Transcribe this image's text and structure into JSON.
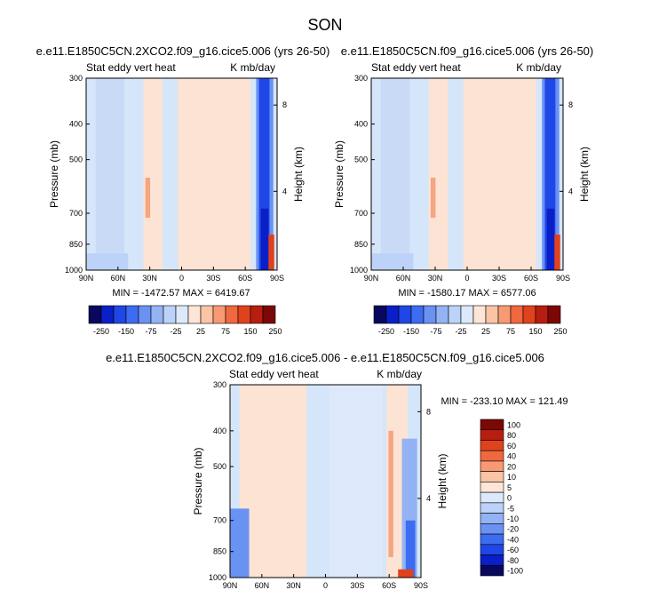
{
  "page": {
    "title": "SON"
  },
  "colors": {
    "scale": [
      "#08085e",
      "#0a1fc8",
      "#1f46e6",
      "#3c6cf0",
      "#6a92f2",
      "#94b3f4",
      "#bcd2f8",
      "#dce9fb",
      "#fde6d8",
      "#fbc4a5",
      "#f79a73",
      "#f0683f",
      "#e0421e",
      "#b81e0f",
      "#7c0707"
    ],
    "neutral_blue": "#d6e6fa",
    "neutral_orange": "#fce3d3"
  },
  "chart_data": [
    {
      "type": "heatmap",
      "title": "e.e11.E1850C5CN.2XCO2.f09_g16.cice5.006 (yrs 26-50)",
      "left_label": "Stat eddy vert heat",
      "right_label": "K mb/day",
      "ylabel": "Pressure (mb)",
      "ylabel_right": "Height (km)",
      "xticks": [
        "90N",
        "60N",
        "30N",
        "0",
        "30S",
        "60S",
        "90S"
      ],
      "yticks": [
        "300",
        "400",
        "500",
        "700",
        "850",
        "1000"
      ],
      "yticks_right": [
        "8",
        "4"
      ],
      "ylim": [
        1000,
        300
      ],
      "y_scale": "log",
      "min_max": "MIN = -1472.57  MAX = 6419.67",
      "colorbar_labels": [
        "-250",
        "-150",
        "-75",
        "-25",
        "25",
        "75",
        "150",
        "250"
      ]
    },
    {
      "type": "heatmap",
      "title": "e.e11.E1850C5CN.f09_g16.cice5.006 (yrs 26-50)",
      "left_label": "Stat eddy vert heat",
      "right_label": "K mb/day",
      "ylabel": "Pressure (mb)",
      "ylabel_right": "Height (km)",
      "xticks": [
        "90N",
        "60N",
        "30N",
        "0",
        "30S",
        "60S",
        "90S"
      ],
      "yticks": [
        "300",
        "400",
        "500",
        "700",
        "850",
        "1000"
      ],
      "yticks_right": [
        "8",
        "4"
      ],
      "ylim": [
        1000,
        300
      ],
      "y_scale": "log",
      "min_max": "MIN = -1580.17  MAX = 6577.06",
      "colorbar_labels": [
        "-250",
        "-150",
        "-75",
        "-25",
        "25",
        "75",
        "150",
        "250"
      ]
    },
    {
      "type": "heatmap",
      "title": "e.e11.E1850C5CN.2XCO2.f09_g16.cice5.006 - e.e11.E1850C5CN.f09_g16.cice5.006",
      "left_label": "Stat eddy vert heat",
      "right_label": "K mb/day",
      "ylabel": "Pressure (mb)",
      "ylabel_right": "Height (km)",
      "xticks": [
        "90N",
        "60N",
        "30N",
        "0",
        "30S",
        "60S",
        "90S"
      ],
      "yticks": [
        "300",
        "400",
        "500",
        "700",
        "850",
        "1000"
      ],
      "yticks_right": [
        "8",
        "4"
      ],
      "ylim": [
        1000,
        300
      ],
      "y_scale": "log",
      "min_max": "MIN = -233.10  MAX = 121.49",
      "colorbar_labels": [
        "100",
        "80",
        "60",
        "40",
        "20",
        "10",
        "5",
        "0",
        "-5",
        "-10",
        "-20",
        "-40",
        "-60",
        "-80",
        "-100"
      ]
    }
  ]
}
